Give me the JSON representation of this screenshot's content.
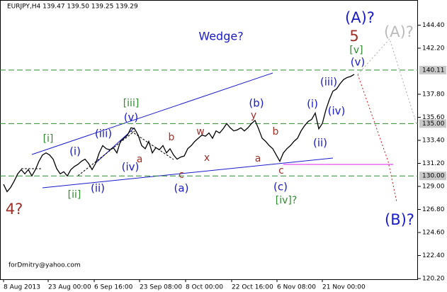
{
  "chart_data": {
    "type": "line",
    "header": "EURJPY,H4  139.47 139.50 139.25 139.29",
    "watermark": "forDmitry@yahoo.com",
    "series": [
      {
        "name": "EURJPY",
        "color": "#000000",
        "values": [
          129.2,
          128.5,
          128.9,
          129.5,
          130.2,
          130.6,
          130.2,
          130.6,
          130.0,
          130.6,
          131.4,
          132.0,
          132.2,
          132.0,
          131.6,
          130.7,
          130.2,
          130.4,
          130.0,
          130.6,
          130.9,
          131.1,
          131.4,
          131.6,
          131.2,
          130.6,
          131.2,
          132.2,
          132.9,
          132.6,
          132.5,
          132.7,
          132.2,
          133.3,
          133.6,
          133.9,
          134.6,
          134.5,
          133.9,
          132.9,
          132.6,
          133.3,
          132.2,
          132.7,
          132.5,
          132.9,
          132.2,
          132.6,
          132.0,
          131.6,
          131.8,
          131.9,
          132.6,
          132.9,
          133.3,
          133.6,
          133.9,
          133.8,
          134.1,
          133.6,
          134.3,
          134.1,
          134.5,
          135.0,
          134.6,
          134.3,
          134.4,
          134.6,
          134.3,
          134.6,
          135.0,
          135.3,
          134.5,
          133.6,
          133.3,
          132.9,
          132.6,
          132.0,
          131.4,
          132.2,
          132.6,
          132.9,
          133.3,
          133.6,
          134.3,
          134.8,
          135.2,
          135.4,
          136.0,
          134.5,
          135.0,
          136.3,
          137.3,
          138.1,
          138.3,
          138.8,
          139.2,
          139.4,
          139.5,
          139.7
        ]
      }
    ],
    "xlim": [
      0,
      117
    ],
    "xticks": [
      {
        "value": 0,
        "label": "8 Aug 2013"
      },
      {
        "value": 12.6,
        "label": "23 Aug 00:00"
      },
      {
        "value": 25.6,
        "label": "6 Sep 16:00"
      },
      {
        "value": 38.4,
        "label": "23 Sep 08:00"
      },
      {
        "value": 51.4,
        "label": "8 Oct 00:00"
      },
      {
        "value": 64.4,
        "label": "22 Oct 16:00"
      },
      {
        "value": 77.2,
        "label": "6 Nov 08:00"
      },
      {
        "value": 90,
        "label": "21 Nov 00:00"
      }
    ],
    "ylim": [
      120.0,
      146.8
    ],
    "yticks": [
      {
        "value": 144.4,
        "label": "144.40"
      },
      {
        "value": 142.2,
        "label": "142.20"
      },
      {
        "value": 137.8,
        "label": "137.80"
      },
      {
        "value": 135.6,
        "label": "135.60"
      },
      {
        "value": 133.4,
        "label": "133.40"
      },
      {
        "value": 131.2,
        "label": "131.20"
      },
      {
        "value": 129.0,
        "label": "129.00"
      },
      {
        "value": 126.8,
        "label": "126.80"
      },
      {
        "value": 124.6,
        "label": "124.60"
      },
      {
        "value": 122.4,
        "label": "122.40"
      },
      {
        "value": 120.2,
        "label": "120.20"
      }
    ],
    "levels": [
      {
        "value": 140.11,
        "label": "140.11"
      },
      {
        "value": 135.0,
        "label": "135.00"
      },
      {
        "value": 130.0,
        "label": "130.00"
      }
    ],
    "level_color": "#2e8b2e",
    "annotations": [
      "(A)?",
      "5",
      "(A)?",
      "[v]",
      "(v)",
      "Wedge?",
      "(iii)",
      "(i)",
      "(iv)",
      "(ii)",
      "(b)",
      "y",
      "b",
      "a",
      "c",
      "(c)",
      "[iv]?",
      "w",
      "x",
      "b",
      "a",
      "c",
      "(a)",
      "[iii]",
      "(v)",
      "(iii)",
      "(iv)",
      "(i)",
      "(ii)",
      "[i]",
      "[ii]",
      "4?",
      "(B)?"
    ]
  }
}
